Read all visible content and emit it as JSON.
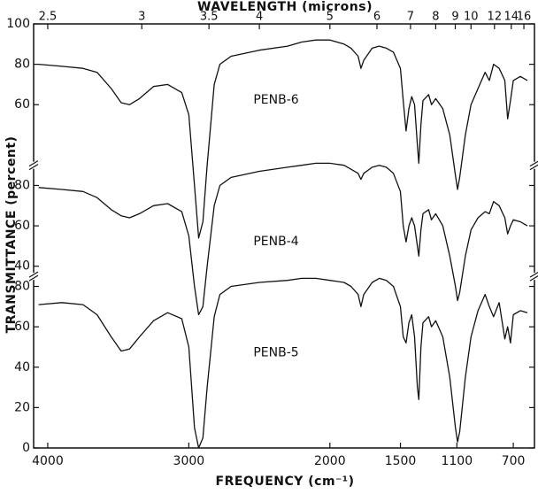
{
  "chart_data": {
    "type": "line",
    "x_label": "FREQUENCY (cm⁻¹)",
    "x2_label": "WAVELENGTH (microns)",
    "y_label": "TRANSMITTANCE (percent)",
    "xlim": [
      4100,
      550
    ],
    "xticks": [
      4000,
      3000,
      2000,
      1500,
      1100,
      700
    ],
    "x2ticks": [
      2.5,
      3,
      3.5,
      4,
      5,
      6,
      7,
      8,
      9,
      10,
      12,
      14,
      16
    ],
    "grid": false,
    "x": [
      4065,
      3900,
      3750,
      3650,
      3550,
      3480,
      3420,
      3350,
      3250,
      3150,
      3050,
      3000,
      2960,
      2930,
      2900,
      2870,
      2820,
      2780,
      2700,
      2500,
      2300,
      2200,
      2100,
      2000,
      1900,
      1850,
      1800,
      1780,
      1760,
      1700,
      1650,
      1600,
      1550,
      1500,
      1480,
      1460,
      1440,
      1420,
      1400,
      1380,
      1370,
      1355,
      1340,
      1300,
      1280,
      1250,
      1200,
      1150,
      1110,
      1095,
      1080,
      1040,
      1000,
      950,
      900,
      870,
      840,
      800,
      760,
      740,
      720,
      700,
      650,
      600
    ],
    "series": [
      {
        "name": "PENB-6",
        "color": "#111111",
        "ylim": [
          30,
          100
        ],
        "yticks": [
          60,
          80,
          100
        ],
        "values": [
          80,
          79,
          78,
          76,
          68,
          61,
          60,
          63,
          69,
          70,
          66,
          55,
          20,
          -6,
          2,
          30,
          70,
          80,
          84,
          87,
          89,
          91,
          92,
          92,
          90,
          88,
          84,
          78,
          82,
          88,
          89,
          88,
          86,
          78,
          62,
          47,
          58,
          64,
          60,
          40,
          31,
          50,
          62,
          65,
          60,
          63,
          58,
          45,
          25,
          18,
          24,
          45,
          60,
          68,
          76,
          72,
          80,
          78,
          72,
          53,
          62,
          72,
          74,
          72
        ]
      },
      {
        "name": "PENB-4",
        "color": "#111111",
        "ylim": [
          35,
          90
        ],
        "yticks": [
          40,
          60,
          80
        ],
        "values": [
          79,
          78,
          77,
          74,
          68,
          65,
          64,
          66,
          70,
          71,
          67,
          55,
          30,
          16,
          20,
          40,
          70,
          80,
          84,
          87,
          89,
          90,
          91,
          91,
          90,
          88,
          86,
          83,
          86,
          89,
          90,
          89,
          86,
          77,
          60,
          52,
          60,
          64,
          60,
          50,
          45,
          58,
          66,
          68,
          63,
          66,
          60,
          45,
          30,
          23,
          27,
          45,
          58,
          64,
          67,
          66,
          72,
          70,
          64,
          56,
          60,
          63,
          62,
          60
        ]
      },
      {
        "name": "PENB-5",
        "color": "#111111",
        "ylim": [
          0,
          85
        ],
        "yticks": [
          0,
          20,
          40,
          60,
          80
        ],
        "values": [
          71,
          72,
          71,
          66,
          55,
          48,
          49,
          55,
          63,
          67,
          64,
          50,
          10,
          0,
          5,
          30,
          65,
          76,
          80,
          82,
          83,
          84,
          84,
          83,
          82,
          80,
          76,
          70,
          76,
          82,
          84,
          83,
          80,
          70,
          55,
          52,
          62,
          66,
          55,
          30,
          24,
          50,
          62,
          65,
          60,
          63,
          55,
          35,
          10,
          3,
          8,
          35,
          55,
          68,
          76,
          70,
          65,
          72,
          54,
          60,
          52,
          66,
          68,
          67
        ]
      }
    ]
  }
}
